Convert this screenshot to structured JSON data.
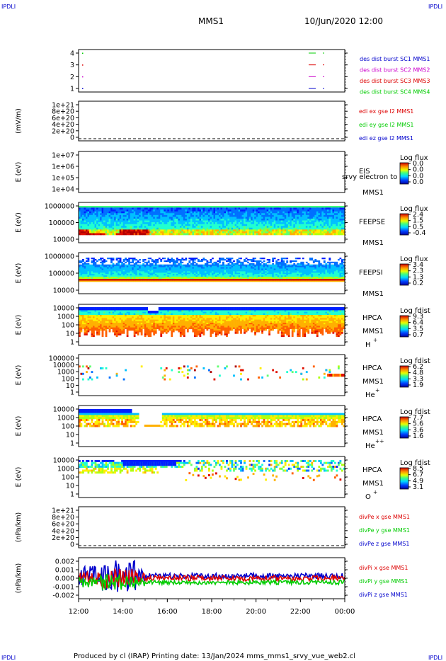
{
  "corner_label": "IPDLI",
  "header": {
    "spacecraft": "MMS1",
    "datetime": "10/Jun/2020 12:00"
  },
  "footer": "Produced by cl (IRAP)   Printing date: 13/Jan/2024   mms_mms1_srvy_vue_web2.cl",
  "colors": {
    "black": "#000000",
    "blue": "#0000cc",
    "magenta": "#cc00cc",
    "red": "#dd0000",
    "green": "#00cc00",
    "axis_text": "#000000"
  },
  "chart_data": {
    "type": "multi-panel",
    "x": {
      "start": "12:00",
      "end": "00:00",
      "ticks": [
        "12:00",
        "14:00",
        "16:00",
        "18:00",
        "20:00",
        "22:00",
        "00:00"
      ]
    },
    "panels": [
      {
        "id": "avail",
        "kind": "availability",
        "ylabel": "",
        "ticks": [
          "4",
          "3",
          "2",
          "1"
        ],
        "legend": [
          {
            "text": "des dist burst SC1 MMS1",
            "color": "#0000cc"
          },
          {
            "text": "des dist burst SC2 MMS2",
            "color": "#cc00cc"
          },
          {
            "text": "des dist burst SC3 MMS3",
            "color": "#dd0000"
          },
          {
            "text": "des dist burst SC4 MMS4",
            "color": "#00cc00"
          }
        ]
      },
      {
        "id": "edi",
        "kind": "line",
        "ylabel": "(mV/m)",
        "ticks": [
          "1e+21",
          "8e+20",
          "6e+20",
          "4e+20",
          "2e+20",
          "0"
        ],
        "legend": [
          {
            "text": "edi ex gse l2 MMS1",
            "color": "#dd0000"
          },
          {
            "text": "edi ey gse l2 MMS1",
            "color": "#00cc00"
          },
          {
            "text": "edi ez gse l2 MMS1",
            "color": "#0000cc"
          }
        ]
      },
      {
        "id": "eis",
        "kind": "spectrogram",
        "ylabel": "E (eV)",
        "ticks": [
          "1e+07",
          "1e+06",
          "1e+05",
          "1e+04"
        ],
        "instrument": [
          "EIS",
          "MMS1"
        ],
        "overlap_text": "srvy electron to",
        "colorbar": {
          "title": "Log flux",
          "labels": [
            "0.0",
            "0.0",
            "0.0",
            "0.0"
          ]
        }
      },
      {
        "id": "feepse",
        "kind": "spectrogram",
        "ylabel": "E (eV)",
        "ticks": [
          "1000000",
          "100000",
          "10000"
        ],
        "instrument": [
          "FEEPSE",
          "MMS1"
        ],
        "colorbar": {
          "title": "Log flux",
          "labels": [
            "2.4",
            "1.5",
            "0.5",
            "-0.4"
          ]
        }
      },
      {
        "id": "feepsi",
        "kind": "spectrogram",
        "ylabel": "E (eV)",
        "ticks": [
          "1000000",
          "100000",
          "10000"
        ],
        "instrument": [
          "FEEPSI",
          "MMS1"
        ],
        "colorbar": {
          "title": "Log flux",
          "labels": [
            "3.4",
            "2.3",
            "1.3",
            "0.2"
          ]
        }
      },
      {
        "id": "hpca_h",
        "kind": "spectrogram",
        "ylabel": "E (eV)",
        "ticks": [
          "10000",
          "1000",
          "100",
          "10",
          "1"
        ],
        "instrument": [
          "HPCA",
          "MMS1"
        ],
        "species": "H",
        "charge": "+",
        "colorbar": {
          "title": "Log fdist",
          "labels": [
            "9.3",
            "6.4",
            "3.5",
            "0.7"
          ]
        }
      },
      {
        "id": "hpca_he",
        "kind": "spectrogram",
        "ylabel": "E (eV)",
        "ticks": [
          "100000",
          "10000",
          "1000",
          "100",
          "10",
          "1"
        ],
        "instrument": [
          "HPCA",
          "MMS1"
        ],
        "species": "He",
        "charge": "+",
        "colorbar": {
          "title": "Log fdist",
          "labels": [
            "6.2",
            "4.8",
            "3.3",
            "1.9"
          ]
        }
      },
      {
        "id": "hpca_hepp",
        "kind": "spectrogram",
        "ylabel": "E (eV)",
        "ticks": [
          "10000",
          "1000",
          "100",
          "10",
          "1"
        ],
        "instrument": [
          "HPCA",
          "MMS1"
        ],
        "species": "He",
        "charge": "++",
        "colorbar": {
          "title": "Log fdist",
          "labels": [
            "7.7",
            "5.6",
            "3.6",
            "1.6"
          ]
        }
      },
      {
        "id": "hpca_o",
        "kind": "spectrogram",
        "ylabel": "E (eV)",
        "ticks": [
          "10000",
          "1000",
          "100",
          "10",
          "1"
        ],
        "instrument": [
          "HPCA",
          "MMS1"
        ],
        "species": "O",
        "charge": "+",
        "colorbar": {
          "title": "Log fdist",
          "labels": [
            "8.5",
            "6.7",
            "4.9",
            "3.1"
          ]
        }
      },
      {
        "id": "divpe",
        "kind": "line",
        "ylabel": "(nPa/km)",
        "ticks": [
          "1e+21",
          "8e+20",
          "6e+20",
          "4e+20",
          "2e+20",
          "0"
        ],
        "legend": [
          {
            "text": "divPe x gse MMS1",
            "color": "#dd0000"
          },
          {
            "text": "divPe y gse MMS1",
            "color": "#00cc00"
          },
          {
            "text": "divPe z gse MMS1",
            "color": "#0000cc"
          }
        ]
      },
      {
        "id": "divpi",
        "kind": "line",
        "ylabel": "(nPa/km)",
        "ticks": [
          "0.002",
          "0.001",
          "0.000",
          "-0.001",
          "-0.002"
        ],
        "legend": [
          {
            "text": "divPi x gse MMS1",
            "color": "#dd0000"
          },
          {
            "text": "divPi y gse MMS1",
            "color": "#00cc00"
          },
          {
            "text": "divPi z gse MMS1",
            "color": "#0000cc"
          }
        ]
      }
    ]
  }
}
